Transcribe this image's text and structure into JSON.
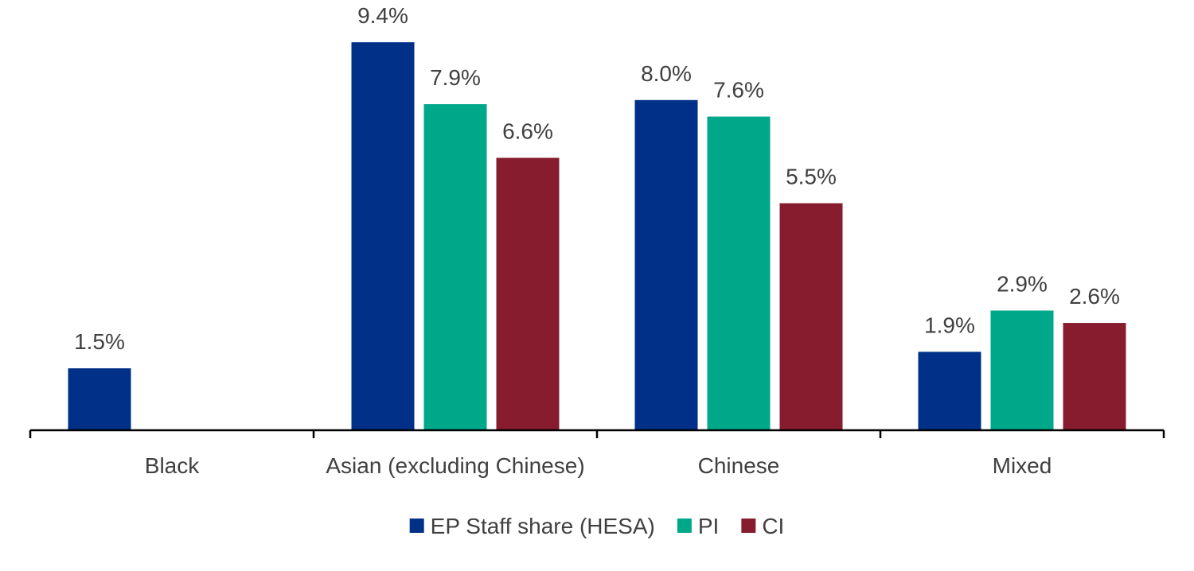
{
  "chart_data": {
    "type": "bar",
    "title": "",
    "xlabel": "",
    "ylabel": "",
    "ylim": [
      0,
      10
    ],
    "grid": false,
    "legend_position": "bottom",
    "categories": [
      "Black",
      "Asian (excluding Chinese)",
      "Chinese",
      "Mixed"
    ],
    "series": [
      {
        "name": "EP Staff share (HESA)",
        "color": "#003087",
        "values": [
          1.5,
          9.4,
          8.0,
          1.9
        ],
        "labels": [
          "1.5%",
          "9.4%",
          "8.0%",
          "1.9%"
        ]
      },
      {
        "name": "PI",
        "color": "#00A88A",
        "values": [
          null,
          7.9,
          7.6,
          2.9
        ],
        "labels": [
          null,
          "7.9%",
          "7.6%",
          "2.9%"
        ]
      },
      {
        "name": "CI",
        "color": "#861C2E",
        "values": [
          null,
          6.6,
          5.5,
          2.6
        ],
        "labels": [
          null,
          "6.6%",
          "5.5%",
          "2.6%"
        ]
      }
    ]
  }
}
